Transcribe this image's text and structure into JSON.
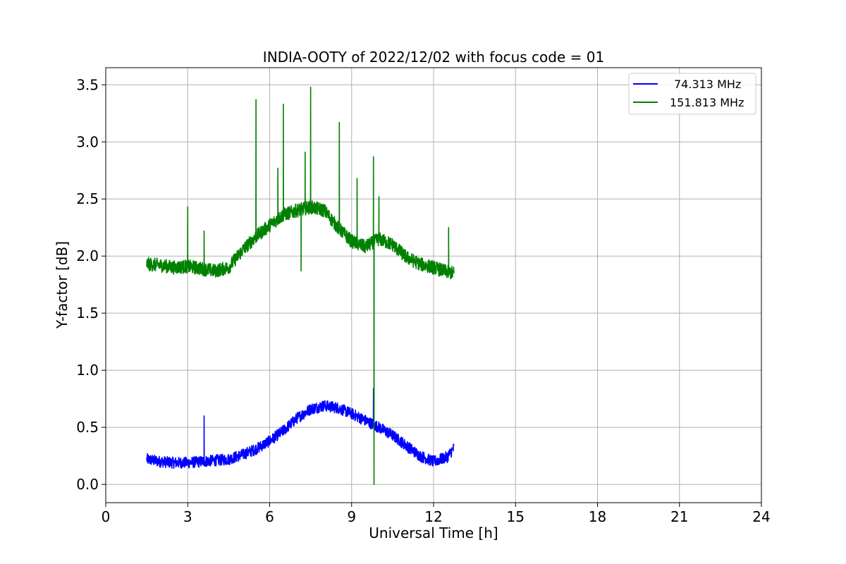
{
  "chart_data": {
    "type": "line",
    "title": "INDIA-OOTY of 2022/12/02 with focus code = 01",
    "xlabel": "Universal Time [h]",
    "ylabel": "Y-factor [dB]",
    "xlim": [
      0,
      24
    ],
    "ylim": [
      -0.16,
      3.65
    ],
    "xticks": [
      0,
      3,
      6,
      9,
      12,
      15,
      18,
      21,
      24
    ],
    "xtick_labels": [
      "0",
      "3",
      "6",
      "9",
      "12",
      "15",
      "18",
      "21",
      "24"
    ],
    "yticks": [
      0.0,
      0.5,
      1.0,
      1.5,
      2.0,
      2.5,
      3.0,
      3.5
    ],
    "ytick_labels": [
      "0.0",
      "0.5",
      "1.0",
      "1.5",
      "2.0",
      "2.5",
      "3.0",
      "3.5"
    ],
    "grid": true,
    "legend_position": "top-right",
    "series": [
      {
        "name": "74.313 MHz",
        "color": "#0000ff",
        "noise_amplitude": 0.05,
        "x": [
          1.5,
          2.0,
          2.5,
          3.0,
          3.5,
          4.0,
          4.5,
          5.0,
          5.5,
          6.0,
          6.5,
          7.0,
          7.5,
          8.0,
          8.5,
          9.0,
          9.5,
          10.0,
          10.5,
          11.0,
          11.5,
          12.0,
          12.5,
          12.75
        ],
        "y": [
          0.22,
          0.2,
          0.19,
          0.19,
          0.2,
          0.21,
          0.22,
          0.26,
          0.31,
          0.38,
          0.47,
          0.58,
          0.66,
          0.69,
          0.67,
          0.62,
          0.56,
          0.5,
          0.43,
          0.34,
          0.25,
          0.2,
          0.24,
          0.32
        ],
        "spikes": [
          {
            "x": 3.6,
            "y": 0.6
          },
          {
            "x": 9.8,
            "y": 0.84
          }
        ]
      },
      {
        "name": "151.813 MHz",
        "color": "#008000",
        "noise_amplitude": 0.06,
        "x": [
          1.5,
          2.0,
          2.5,
          3.0,
          3.5,
          4.0,
          4.5,
          5.0,
          5.5,
          6.0,
          6.5,
          7.0,
          7.5,
          8.0,
          8.5,
          9.0,
          9.5,
          10.0,
          10.5,
          11.0,
          11.5,
          12.0,
          12.5,
          12.75
        ],
        "y": [
          1.93,
          1.92,
          1.9,
          1.91,
          1.89,
          1.87,
          1.9,
          2.05,
          2.17,
          2.27,
          2.36,
          2.4,
          2.43,
          2.4,
          2.25,
          2.13,
          2.08,
          2.15,
          2.1,
          1.99,
          1.93,
          1.9,
          1.86,
          1.85
        ],
        "spikes": [
          {
            "x": 3.0,
            "y": 2.43
          },
          {
            "x": 3.6,
            "y": 2.22
          },
          {
            "x": 5.5,
            "y": 3.37
          },
          {
            "x": 6.3,
            "y": 2.77
          },
          {
            "x": 6.5,
            "y": 3.33
          },
          {
            "x": 7.3,
            "y": 2.91
          },
          {
            "x": 7.5,
            "y": 3.48
          },
          {
            "x": 8.55,
            "y": 3.17
          },
          {
            "x": 9.2,
            "y": 2.68
          },
          {
            "x": 9.8,
            "y": 2.87
          },
          {
            "x": 10.0,
            "y": 2.52
          },
          {
            "x": 12.55,
            "y": 2.25
          },
          {
            "x": 7.15,
            "y": 1.87
          },
          {
            "x": 9.82,
            "y": 0.0
          }
        ]
      }
    ]
  }
}
